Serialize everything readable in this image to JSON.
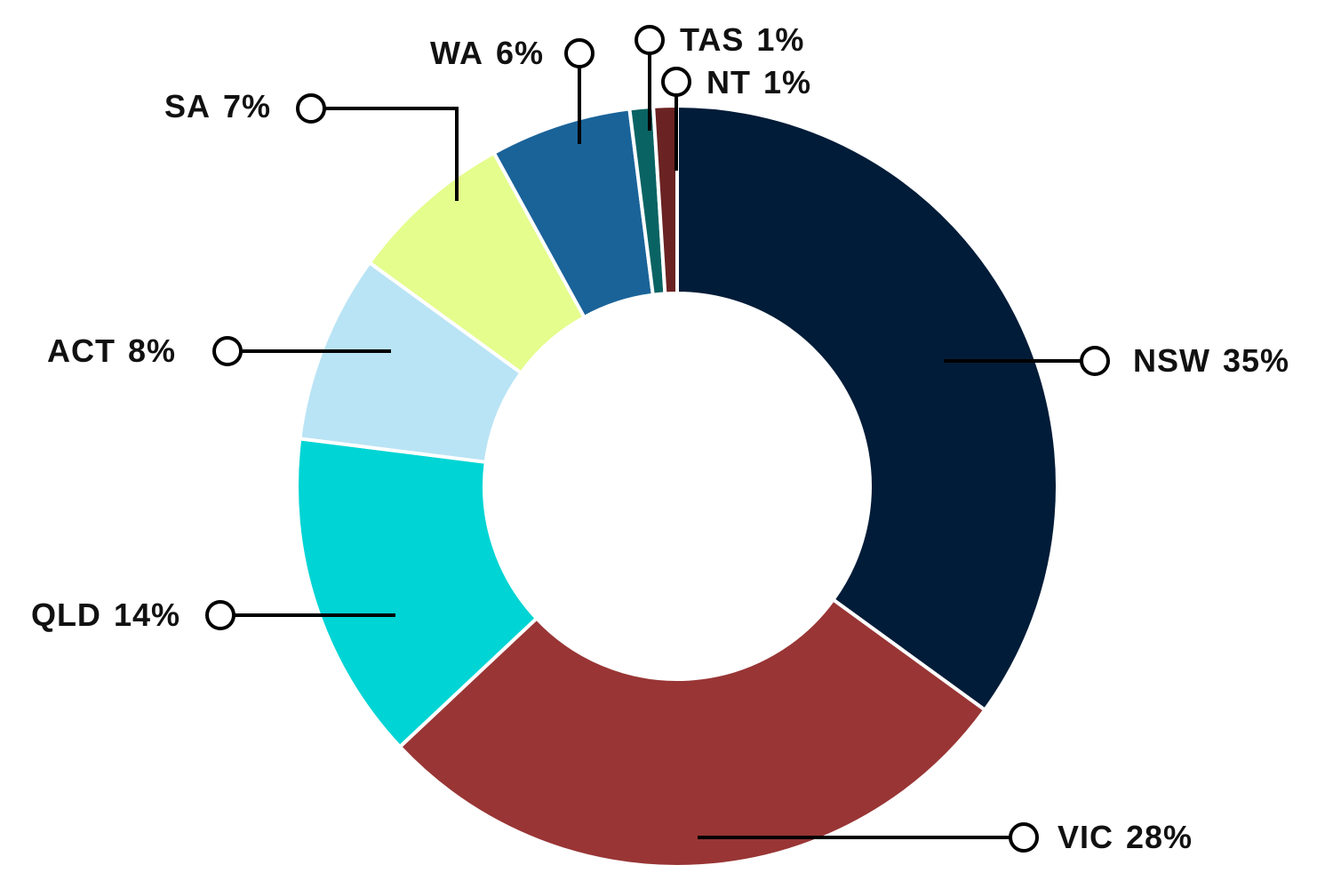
{
  "chart_data": {
    "type": "donut",
    "categories": [
      "NSW",
      "VIC",
      "QLD",
      "ACT",
      "SA",
      "WA",
      "TAS",
      "NT"
    ],
    "values": [
      35,
      28,
      14,
      8,
      7,
      6,
      1,
      1
    ],
    "value_labels": [
      "35%",
      "28%",
      "14%",
      "8%",
      "7%",
      "6%",
      "1%",
      "1%"
    ],
    "colors": [
      "#011c38",
      "#993535",
      "#00d4d4",
      "#b9e4f5",
      "#e4fd8c",
      "#1a6399",
      "#0a6363",
      "#6b2222"
    ]
  }
}
